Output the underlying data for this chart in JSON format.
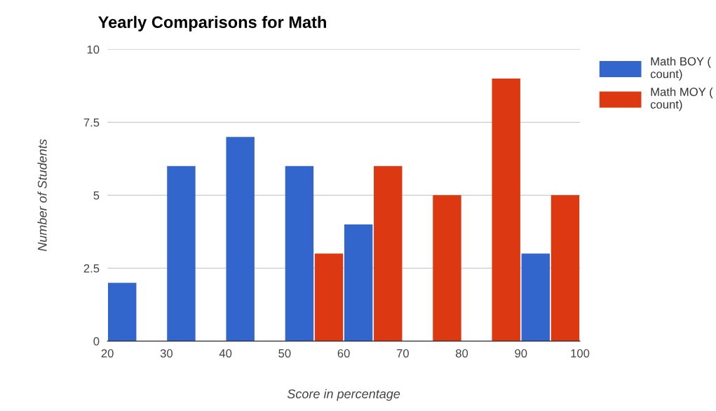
{
  "chart_data": {
    "type": "bar",
    "title": "Yearly Comparisons for Math",
    "xlabel": "Score in percentage",
    "ylabel": "Number of Students",
    "series": [
      {
        "name": "Math BOY ( count)",
        "color": "#3366cc",
        "x": [
          22.5,
          32.5,
          42.5,
          52.5,
          62.5,
          92.5
        ],
        "values": [
          2,
          6,
          7,
          6,
          4,
          3
        ]
      },
      {
        "name": "Math MOY ( count)",
        "color": "#dc3912",
        "x": [
          57.5,
          67.5,
          77.5,
          87.5,
          97.5
        ],
        "values": [
          3,
          6,
          5,
          9,
          5
        ]
      }
    ],
    "xlim": [
      20,
      100
    ],
    "xticks": [
      20,
      30,
      40,
      50,
      60,
      70,
      80,
      90,
      100
    ],
    "ylim": [
      0,
      10
    ],
    "yticks": [
      0,
      {
        "value": 2.5,
        "label": "2.5"
      },
      5,
      {
        "value": 7.5,
        "label": "7.5"
      },
      10
    ],
    "grid": "y",
    "legend": "top right"
  }
}
